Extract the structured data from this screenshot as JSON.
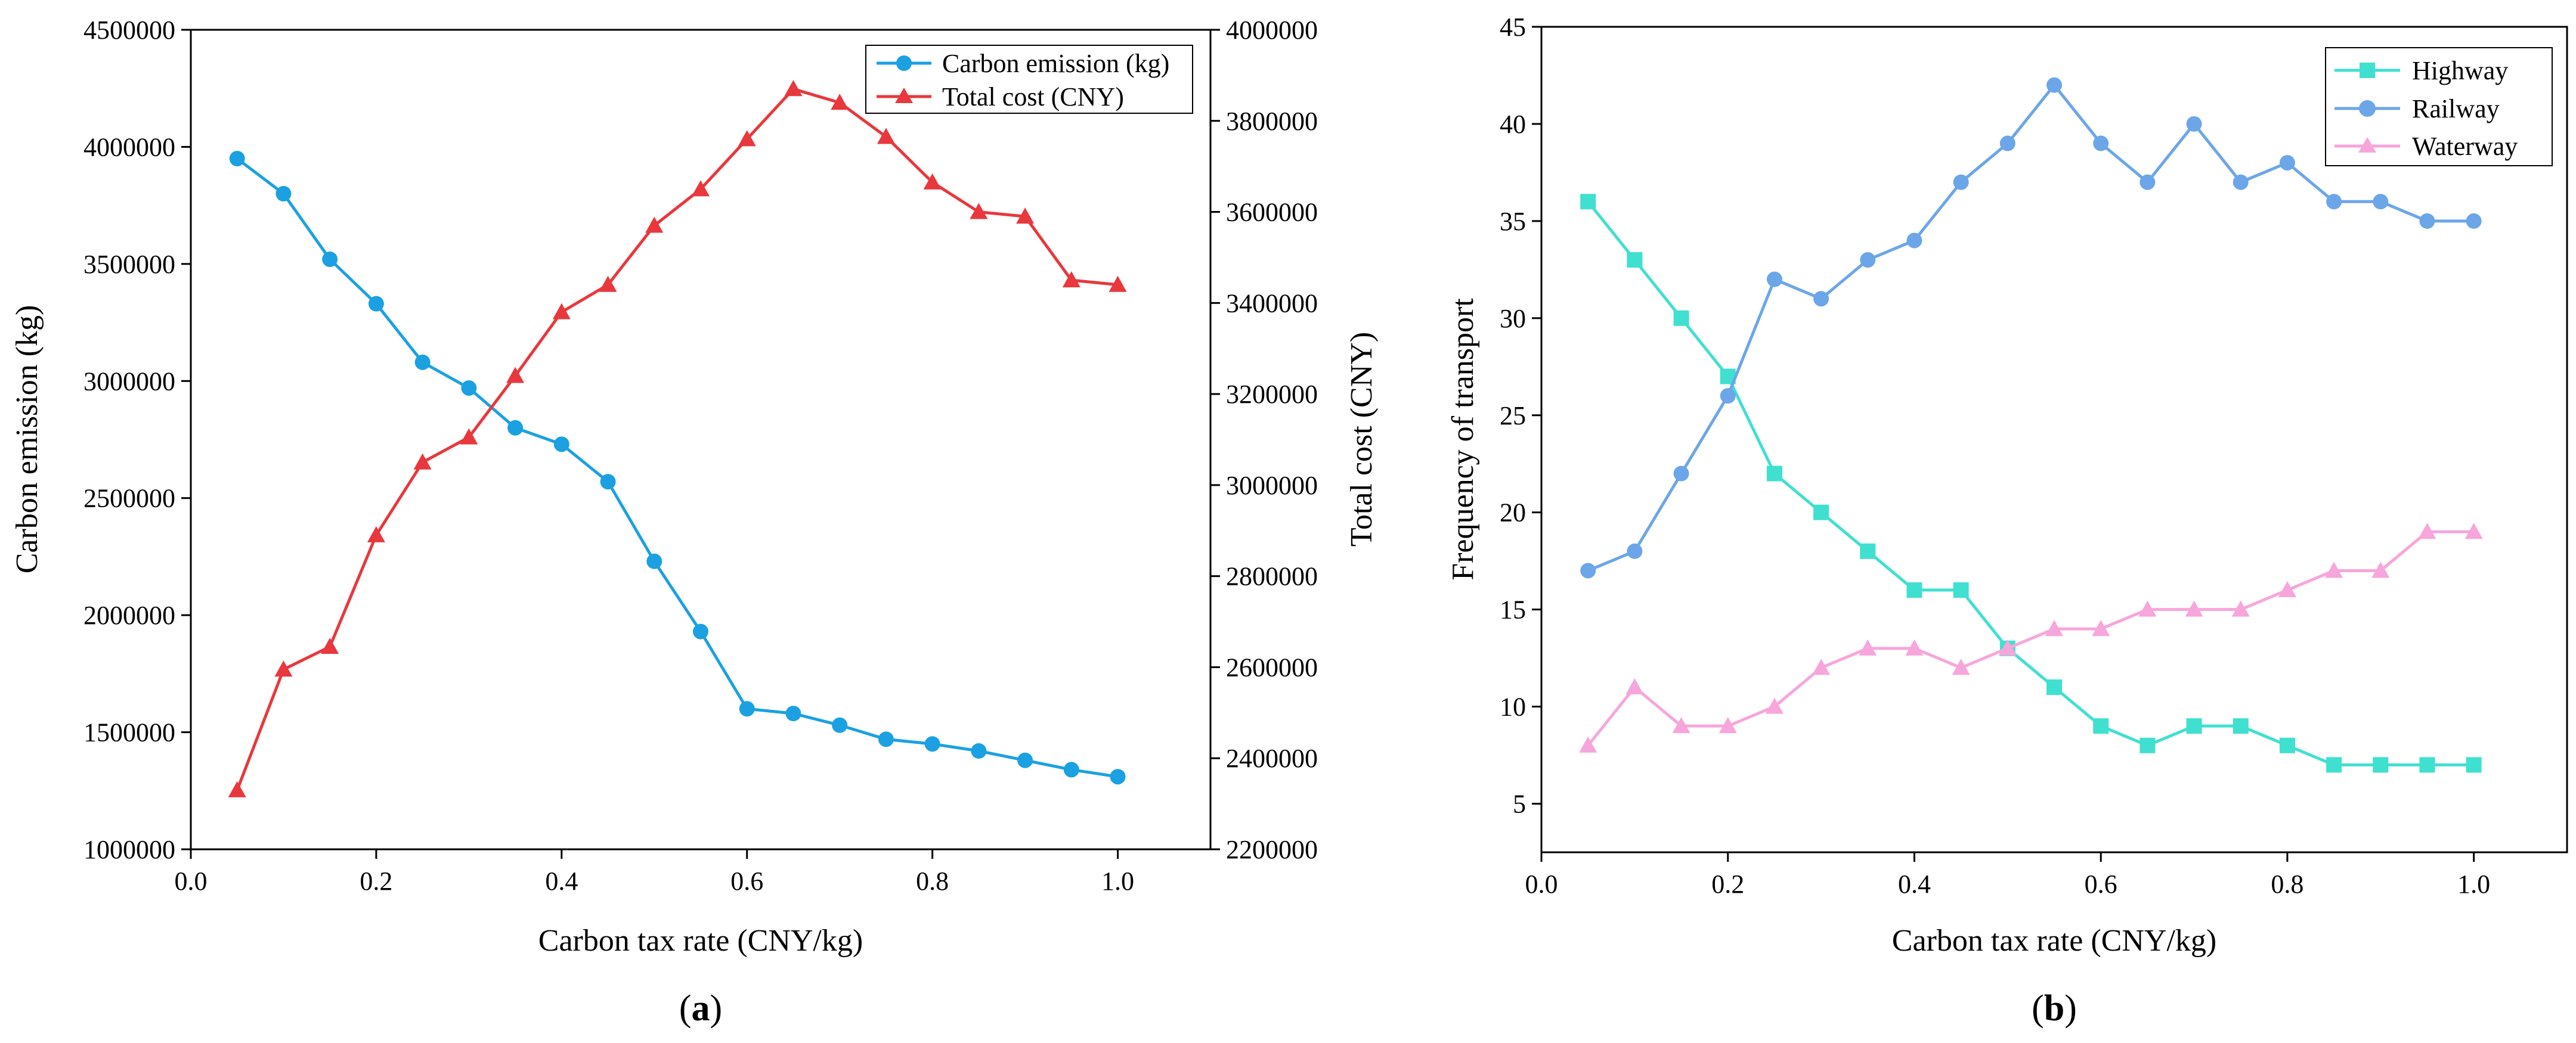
{
  "chart_data": [
    {
      "id": "a",
      "type": "line",
      "caption_letter": "a",
      "xlabel": "Carbon tax rate (CNY/kg)",
      "ylabel_left": "Carbon emission (kg)",
      "ylabel_right": "Total cost (CNY)",
      "xlim": [
        0.0,
        1.1
      ],
      "xticks": [
        0.0,
        0.2,
        0.4,
        0.6,
        0.8,
        1.0
      ],
      "xtick_labels": [
        "0.0",
        "0.2",
        "0.4",
        "0.6",
        "0.8",
        "1.0"
      ],
      "ylim_left": [
        1000000,
        4500000
      ],
      "yticks_left": [
        1000000,
        1500000,
        2000000,
        2500000,
        3000000,
        3500000,
        4000000,
        4500000
      ],
      "ytick_labels_left": [
        "1000000",
        "1500000",
        "2000000",
        "2500000",
        "3000000",
        "3500000",
        "4000000",
        "4500000"
      ],
      "ylim_right": [
        2200000,
        4000000
      ],
      "yticks_right": [
        2200000,
        2400000,
        2600000,
        2800000,
        3000000,
        3200000,
        3400000,
        3600000,
        3800000,
        4000000
      ],
      "ytick_labels_right": [
        "2200000",
        "2400000",
        "2600000",
        "2800000",
        "3000000",
        "3200000",
        "3400000",
        "3600000",
        "3800000",
        "4000000"
      ],
      "legend_position": "top-right",
      "x": [
        0.05,
        0.1,
        0.15,
        0.2,
        0.25,
        0.3,
        0.35,
        0.4,
        0.45,
        0.5,
        0.55,
        0.6,
        0.65,
        0.7,
        0.75,
        0.8,
        0.85,
        0.9,
        0.95,
        1.0
      ],
      "series": [
        {
          "name": "Carbon emission (kg)",
          "axis": "left",
          "marker": "circle",
          "color": "#1BA1E2",
          "values": [
            3950000,
            3800000,
            3520000,
            3330000,
            3080000,
            2970000,
            2800000,
            2730000,
            2570000,
            2230000,
            1930000,
            1600000,
            1580000,
            1530000,
            1470000,
            1450000,
            1420000,
            1380000,
            1340000,
            1310000
          ]
        },
        {
          "name": "Total cost (CNY)",
          "axis": "right",
          "marker": "triangle",
          "color": "#E8383D",
          "values": [
            2330000,
            2595000,
            2645000,
            2890000,
            3050000,
            3105000,
            3240000,
            3380000,
            3440000,
            3570000,
            3650000,
            3760000,
            3870000,
            3840000,
            3765000,
            3665000,
            3600000,
            3590000,
            3450000,
            3440000
          ]
        }
      ]
    },
    {
      "id": "b",
      "type": "line",
      "caption_letter": "b",
      "xlabel": "Carbon tax rate (CNY/kg)",
      "ylabel": "Frequency of transport",
      "xlim": [
        0.0,
        1.1
      ],
      "xticks": [
        0.0,
        0.2,
        0.4,
        0.6,
        0.8,
        1.0
      ],
      "xtick_labels": [
        "0.0",
        "0.2",
        "0.4",
        "0.6",
        "0.8",
        "1.0"
      ],
      "ylim": [
        2.5,
        45
      ],
      "yticks": [
        5,
        10,
        15,
        20,
        25,
        30,
        35,
        40,
        45
      ],
      "ytick_labels": [
        "5",
        "10",
        "15",
        "20",
        "25",
        "30",
        "35",
        "40",
        "45"
      ],
      "legend_position": "top-right",
      "x": [
        0.05,
        0.1,
        0.15,
        0.2,
        0.25,
        0.3,
        0.35,
        0.4,
        0.45,
        0.5,
        0.55,
        0.6,
        0.65,
        0.7,
        0.75,
        0.8,
        0.85,
        0.9,
        0.95,
        1.0
      ],
      "series": [
        {
          "name": "Highway",
          "marker": "square",
          "color": "#40E0D0",
          "values": [
            36,
            33,
            30,
            27,
            22,
            20,
            18,
            16,
            16,
            13,
            11,
            9,
            8,
            9,
            9,
            8,
            7,
            7,
            7,
            7
          ]
        },
        {
          "name": "Railway",
          "marker": "circle",
          "color": "#6CA6E8",
          "values": [
            17,
            18,
            22,
            26,
            32,
            31,
            33,
            34,
            37,
            39,
            42,
            39,
            37,
            40,
            37,
            38,
            36,
            36,
            35,
            35
          ]
        },
        {
          "name": "Waterway",
          "marker": "triangle",
          "color": "#F7A6DB",
          "values": [
            8,
            11,
            9,
            9,
            10,
            12,
            13,
            13,
            12,
            13,
            14,
            14,
            15,
            15,
            15,
            16,
            17,
            17,
            19,
            19
          ]
        }
      ]
    }
  ]
}
